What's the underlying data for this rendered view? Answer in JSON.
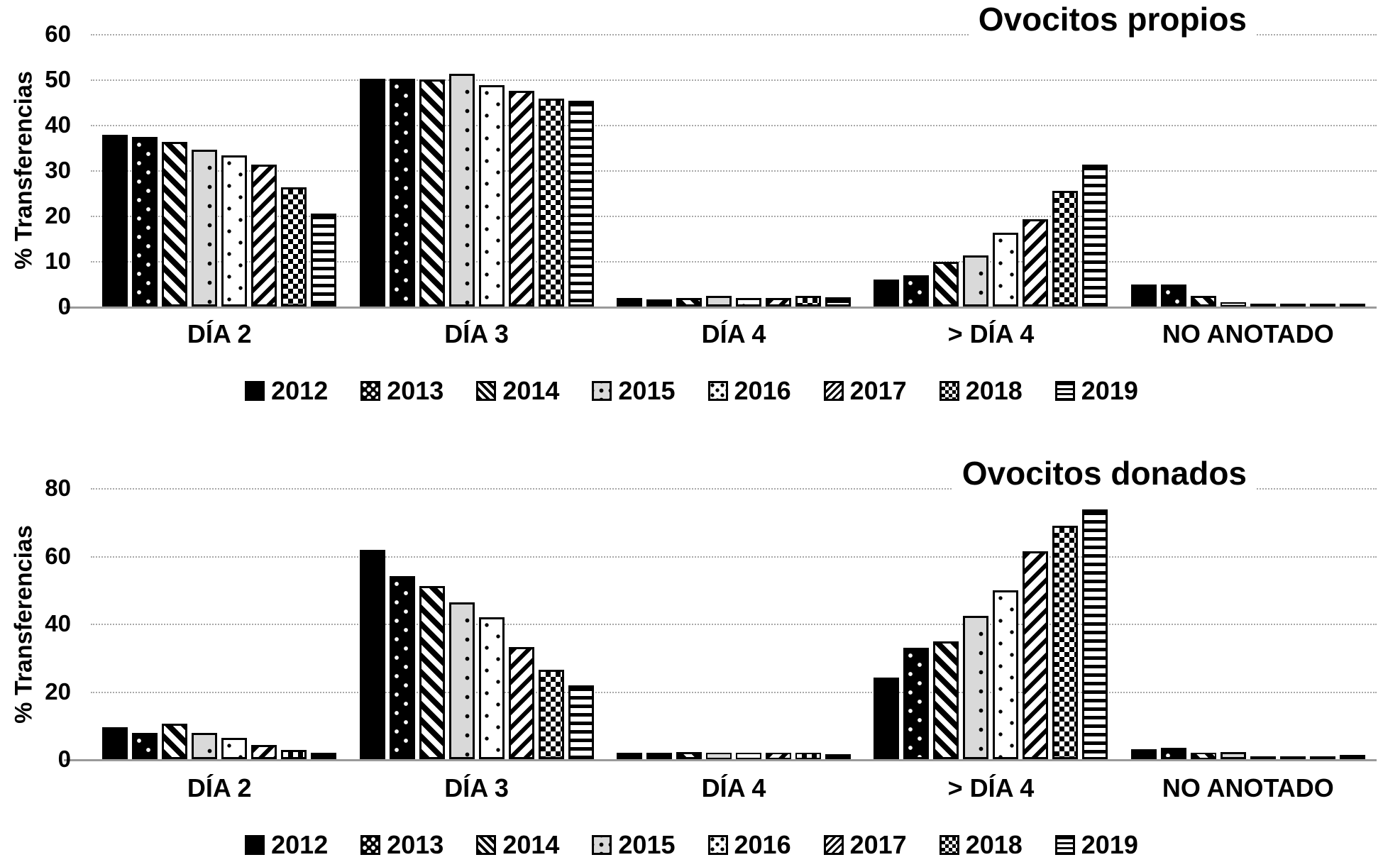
{
  "chart_data": [
    {
      "type": "bar",
      "title": "Ovocitos propios",
      "ylabel": "% Transferencias",
      "ylim": [
        0,
        60
      ],
      "yticks": [
        0,
        10,
        20,
        30,
        40,
        50,
        60
      ],
      "grid": true,
      "legend_position": "bottom",
      "categories": [
        "DÍA 2",
        "DÍA 3",
        "DÍA 4",
        "> DÍA 4",
        "NO ANOTADO"
      ],
      "series": [
        {
          "name": "2012",
          "pattern": "solid",
          "values": [
            37.8,
            50.2,
            1.9,
            6.0,
            4.9
          ]
        },
        {
          "name": "2013",
          "pattern": "dots-on-black",
          "values": [
            37.3,
            50.2,
            1.5,
            6.9,
            4.8
          ]
        },
        {
          "name": "2014",
          "pattern": "diag-down",
          "values": [
            36.3,
            50.0,
            1.8,
            9.9,
            2.4
          ]
        },
        {
          "name": "2015",
          "pattern": "dots-on-gray",
          "values": [
            34.5,
            51.3,
            2.3,
            11.3,
            1.0
          ]
        },
        {
          "name": "2016",
          "pattern": "dots-on-white",
          "values": [
            33.3,
            48.8,
            1.8,
            16.3,
            0.6
          ]
        },
        {
          "name": "2017",
          "pattern": "diag-up",
          "values": [
            31.3,
            47.5,
            1.9,
            19.2,
            0.6
          ]
        },
        {
          "name": "2018",
          "pattern": "checker",
          "values": [
            26.3,
            45.8,
            2.3,
            25.4,
            0.6
          ]
        },
        {
          "name": "2019",
          "pattern": "hlines",
          "values": [
            20.5,
            45.3,
            2.1,
            31.2,
            0.5
          ]
        }
      ]
    },
    {
      "type": "bar",
      "title": "Ovocitos donados",
      "ylabel": "% Transferencias",
      "ylim": [
        0,
        80
      ],
      "yticks": [
        0,
        20,
        40,
        60,
        80
      ],
      "grid": true,
      "legend_position": "bottom",
      "categories": [
        "DÍA 2",
        "DÍA 3",
        "DÍA 4",
        "> DÍA 4",
        "NO ANOTADO"
      ],
      "series": [
        {
          "name": "2012",
          "pattern": "solid",
          "values": [
            9.5,
            61.7,
            1.8,
            24.0,
            3.0
          ]
        },
        {
          "name": "2013",
          "pattern": "dots-on-black",
          "values": [
            7.7,
            54.0,
            1.8,
            32.8,
            3.3
          ]
        },
        {
          "name": "2014",
          "pattern": "diag-down",
          "values": [
            10.5,
            51.0,
            2.2,
            34.8,
            1.8
          ]
        },
        {
          "name": "2015",
          "pattern": "dots-on-gray",
          "values": [
            7.8,
            46.2,
            1.8,
            42.4,
            2.0
          ]
        },
        {
          "name": "2016",
          "pattern": "dots-on-white",
          "values": [
            6.2,
            41.8,
            1.8,
            49.8,
            0.7
          ]
        },
        {
          "name": "2017",
          "pattern": "diag-up",
          "values": [
            4.2,
            33.0,
            1.8,
            61.4,
            0.7
          ]
        },
        {
          "name": "2018",
          "pattern": "checker",
          "values": [
            2.8,
            26.3,
            1.8,
            68.9,
            0.2
          ]
        },
        {
          "name": "2019",
          "pattern": "hlines",
          "values": [
            1.8,
            21.8,
            1.5,
            73.7,
            1.2
          ]
        }
      ]
    }
  ]
}
